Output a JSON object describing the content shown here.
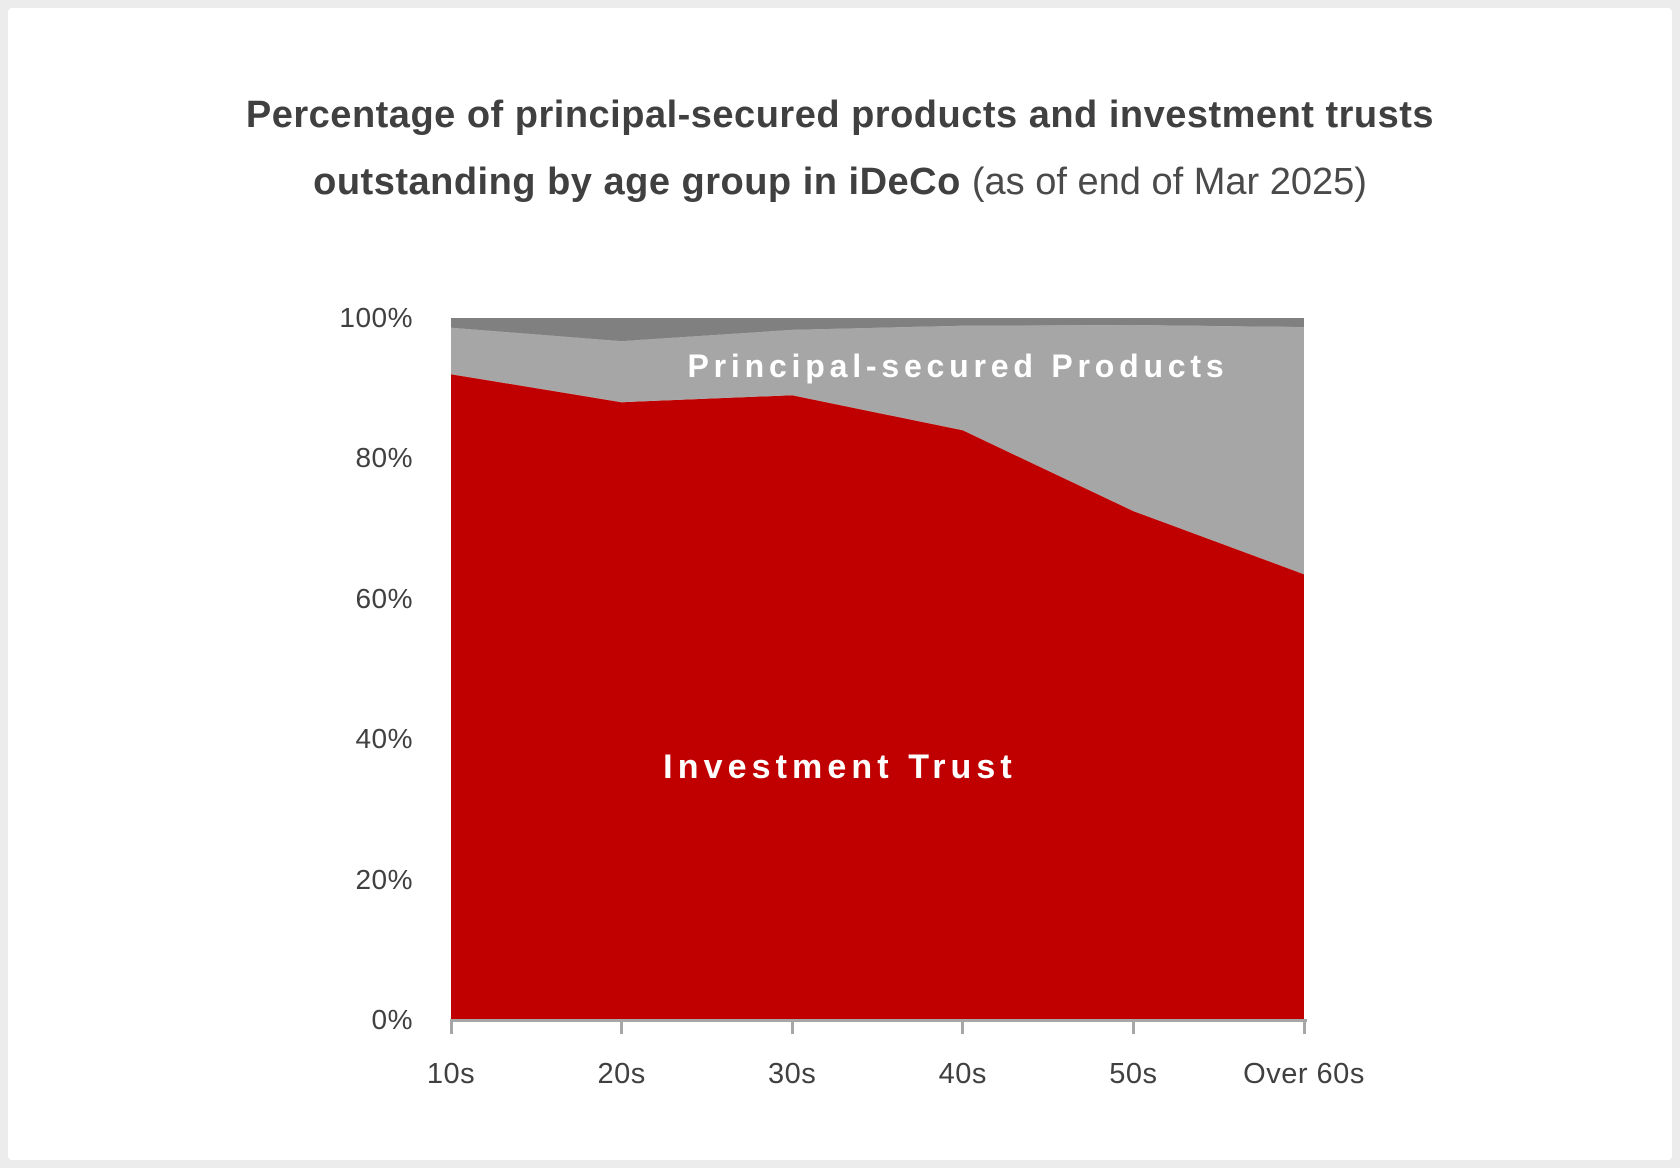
{
  "title": {
    "line1": "Percentage of principal-secured products and investment trusts",
    "line2_bold": "outstanding by age group in iDeCo",
    "line2_light": "(as of end of Mar 2025)"
  },
  "colors": {
    "investment_trust_area": "#C00000",
    "principal_secured_area": "#A6A6A6",
    "top_band_area": "#808080",
    "axis": "#A6A6A6",
    "text": "#404040",
    "area_label_text": "#FFFFFF",
    "page_frame": "#ECECEC",
    "card_background": "#FFFFFF"
  },
  "chart_data": {
    "type": "area",
    "stacked": true,
    "title": "Percentage of principal-secured products and investment trusts outstanding by age group in iDeCo (as of end of Mar 2025)",
    "categories": [
      "10s",
      "20s",
      "30s",
      "40s",
      "50s",
      "Over 60s"
    ],
    "series": [
      {
        "name": "Investment Trust",
        "label_visible": true,
        "color": "#C00000",
        "values": [
          92,
          88,
          89,
          84,
          72.5,
          63.5
        ]
      },
      {
        "name": "Principal-secured Products",
        "label_visible": true,
        "color": "#A6A6A6",
        "values": [
          6.6,
          8.7,
          9.3,
          14.9,
          26.5,
          35.2
        ]
      },
      {
        "name": "",
        "label_visible": false,
        "color": "#808080",
        "values": [
          1.4,
          3.3,
          1.7,
          1.1,
          1.0,
          1.3
        ]
      }
    ],
    "xlabel": "",
    "ylabel": "",
    "ylim": [
      0,
      100
    ],
    "ytick_labels": [
      "0%",
      "20%",
      "40%",
      "60%",
      "80%",
      "100%"
    ],
    "ytick_values": [
      0,
      20,
      40,
      60,
      80,
      100
    ],
    "grid": false,
    "legend_position": "labels-inside-areas"
  },
  "area_labels": {
    "principal": "Principal-secured Products",
    "investment": "Investment Trust"
  }
}
